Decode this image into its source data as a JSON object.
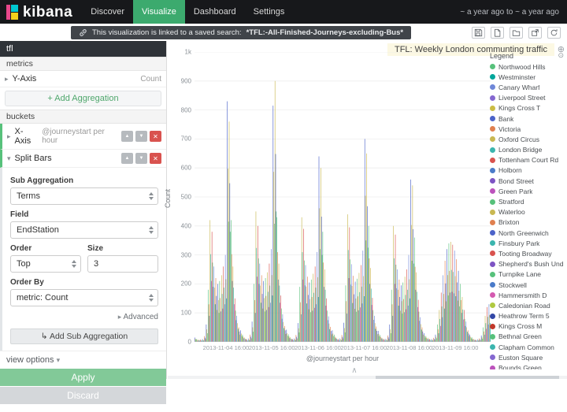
{
  "header": {
    "logo": "kibana",
    "nav": [
      {
        "label": "Discover",
        "active": false
      },
      {
        "label": "Visualize",
        "active": true
      },
      {
        "label": "Dashboard",
        "active": false
      },
      {
        "label": "Settings",
        "active": false
      }
    ],
    "time_range": "~ a year ago to ~ a year ago"
  },
  "toolbar": {
    "linked_message_prefix": "This visualization is linked to a saved search: ",
    "linked_search_name": "*TFL:-All-Finished-Journeys-excluding-Bus*",
    "icons": [
      "save-icon",
      "new-document-icon",
      "open-folder-icon",
      "share-icon",
      "refresh-icon"
    ]
  },
  "sidebar": {
    "vis_name": "tfl",
    "metrics_header": "metrics",
    "y_axis_label": "Y-Axis",
    "y_axis_value": "Count",
    "add_aggregation_label": "+ Add Aggregation",
    "buckets_header": "buckets",
    "x_axis_label": "X-Axis",
    "x_axis_value": "@journeystart per hour",
    "split_bars_label": "Split Bars",
    "form": {
      "sub_aggregation_label": "Sub Aggregation",
      "sub_aggregation_value": "Terms",
      "field_label": "Field",
      "field_value": "EndStation",
      "order_label": "Order",
      "order_value": "Top",
      "size_label": "Size",
      "size_value": "3",
      "order_by_label": "Order By",
      "order_by_value": "metric: Count",
      "advanced_label": "Advanced",
      "add_sub_aggregation_label": "Add Sub Aggregation"
    },
    "view_options_label": "view options",
    "apply_label": "Apply",
    "discard_label": "Discard"
  },
  "chart_data": {
    "type": "bar",
    "title": "TFL: Weekly London communting traffic",
    "xlabel": "@journeystart per hour",
    "ylabel": "Count",
    "ylim": [
      0,
      1000
    ],
    "grid": true,
    "legend_position": "right",
    "legend_title": "Legend",
    "y_ticks": [
      "1k",
      "900",
      "800",
      "700",
      "600",
      "500",
      "400",
      "300",
      "200",
      "100",
      "0"
    ],
    "x_ticks": [
      "2013-11-04 16:00",
      "2013-11-05 16:00",
      "2013-11-06 16:00",
      "2013-11-07 16:00",
      "2013-11-08 16:00",
      "2013-11-09 16:00"
    ],
    "split_ratios": [
      1,
      0.72,
      0.5
    ],
    "spike_colors_a": [
      "#4c63c9",
      "#c9b852",
      "#57c17b"
    ],
    "spike_colors_b": [
      "#c9b852",
      "#4c63c9",
      "#57c17b"
    ],
    "bar_color_cycle": [
      [
        "#4c63c9",
        "#c9b852",
        "#57c17b"
      ],
      [
        "#57c17b",
        "#e0804f",
        "#4a7bc9"
      ],
      [
        "#c9b852",
        "#3bb5ae",
        "#bc52bc"
      ],
      [
        "#d9534f",
        "#57c17b",
        "#6f87d8"
      ],
      [
        "#6f87d8",
        "#c9b852",
        "#00a69b"
      ],
      [
        "#e0804f",
        "#4c63c9",
        "#b0c941"
      ]
    ],
    "days": [
      {
        "date": "2013-11-04",
        "hours": [
          15,
          10,
          8,
          8,
          10,
          20,
          60,
          180,
          420,
          380,
          260,
          220,
          200,
          210,
          230,
          260,
          300,
          830,
          760,
          420,
          260,
          150,
          90,
          50
        ]
      },
      {
        "date": "2013-11-05",
        "hours": [
          40,
          25,
          15,
          10,
          12,
          25,
          70,
          200,
          450,
          400,
          270,
          230,
          210,
          220,
          240,
          270,
          320,
          815,
          900,
          430,
          270,
          160,
          95,
          55
        ]
      },
      {
        "date": "2013-11-06",
        "hours": [
          42,
          26,
          16,
          11,
          12,
          24,
          65,
          190,
          430,
          390,
          265,
          225,
          205,
          215,
          235,
          260,
          310,
          640,
          600,
          380,
          250,
          150,
          88,
          52
        ]
      },
      {
        "date": "2013-11-07",
        "hours": [
          40,
          25,
          15,
          10,
          12,
          24,
          66,
          195,
          440,
          395,
          268,
          228,
          208,
          218,
          238,
          265,
          315,
          700,
          650,
          400,
          255,
          152,
          90,
          53
        ]
      },
      {
        "date": "2013-11-08",
        "hours": [
          38,
          24,
          14,
          10,
          11,
          22,
          60,
          180,
          400,
          370,
          250,
          215,
          195,
          205,
          225,
          250,
          300,
          560,
          540,
          360,
          240,
          145,
          85,
          50
        ]
      },
      {
        "date": "2013-11-09",
        "hours": [
          30,
          20,
          14,
          10,
          10,
          14,
          25,
          60,
          110,
          170,
          230,
          280,
          320,
          340,
          345,
          335,
          315,
          285,
          245,
          200,
          155,
          110,
          70,
          40
        ]
      },
      {
        "date": "2013-11-10",
        "hours": [
          25,
          16,
          10,
          8,
          9,
          12,
          22,
          50,
          90,
          120,
          130
        ]
      }
    ],
    "legend": [
      {
        "name": "Northwood Hills",
        "color": "#57c17b"
      },
      {
        "name": "Westminster",
        "color": "#00a69b"
      },
      {
        "name": "Canary Wharf",
        "color": "#6f87d8"
      },
      {
        "name": "Liverpool Street",
        "color": "#8568d0"
      },
      {
        "name": "Kings Cross T",
        "color": "#cbbc44"
      },
      {
        "name": "Bank",
        "color": "#4c63c9"
      },
      {
        "name": "Victoria",
        "color": "#e0804f"
      },
      {
        "name": "Oxford Circus",
        "color": "#c9b852"
      },
      {
        "name": "London Bridge",
        "color": "#3bb5ae"
      },
      {
        "name": "Tottenham Court Rd",
        "color": "#d9534f"
      },
      {
        "name": "Holborn",
        "color": "#4a7bc9"
      },
      {
        "name": "Bond Street",
        "color": "#7d54c4"
      },
      {
        "name": "Green Park",
        "color": "#bc52bc"
      },
      {
        "name": "Stratford",
        "color": "#57c17b"
      },
      {
        "name": "Waterloo",
        "color": "#c9b852"
      },
      {
        "name": "Brixton",
        "color": "#e0804f"
      },
      {
        "name": "North Greenwich",
        "color": "#4c63c9"
      },
      {
        "name": "Finsbury Park",
        "color": "#3bb5ae"
      },
      {
        "name": "Tooting Broadway",
        "color": "#d9534f"
      },
      {
        "name": "Shepherd's Bush Und",
        "color": "#7d54c4"
      },
      {
        "name": "Turnpike Lane",
        "color": "#57c17b"
      },
      {
        "name": "Stockwell",
        "color": "#4a7bc9"
      },
      {
        "name": "Hammersmith D",
        "color": "#d45bb0"
      },
      {
        "name": "Caledonian Road",
        "color": "#b0c941"
      },
      {
        "name": "Heathrow Term 5",
        "color": "#3347a6"
      },
      {
        "name": "Kings Cross M",
        "color": "#c0392b"
      },
      {
        "name": "Bethnal Green",
        "color": "#57c17b"
      },
      {
        "name": "Clapham Common",
        "color": "#3bb5ae"
      },
      {
        "name": "Euston Square",
        "color": "#8568d0"
      },
      {
        "name": "Bounds Green",
        "color": "#bc52bc"
      }
    ]
  }
}
